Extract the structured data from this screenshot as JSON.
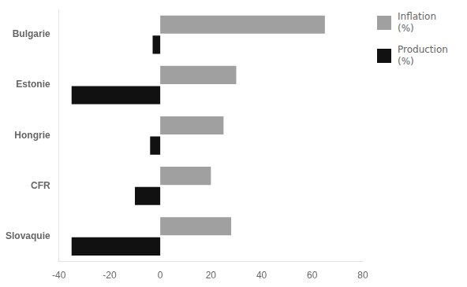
{
  "chart_data": {
    "type": "bar",
    "orientation": "horizontal",
    "categories": [
      "Bulgarie",
      "Estonie",
      "Hongrie",
      "CFR",
      "Slovaquie"
    ],
    "series": [
      {
        "name": "Inflation\n(%)",
        "color": "#a0a0a0",
        "values": [
          65,
          30,
          25,
          20,
          28
        ]
      },
      {
        "name": "Production\n(%)",
        "color": "#111111",
        "values": [
          -3,
          -35,
          -4,
          -10,
          -35
        ]
      }
    ],
    "xlim": [
      -40,
      80
    ],
    "xticks": [
      -40,
      -20,
      0,
      20,
      40,
      60,
      80
    ],
    "grid": false,
    "legend": "upper right"
  }
}
